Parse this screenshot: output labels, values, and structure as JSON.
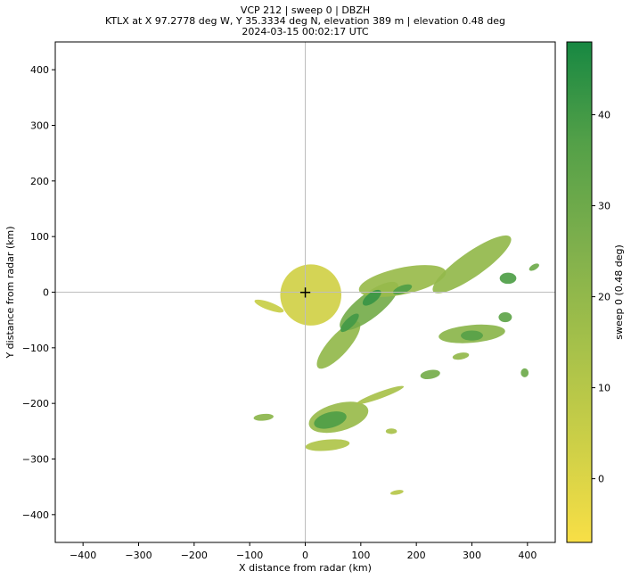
{
  "chart_data": {
    "type": "heatmap",
    "title_lines": [
      "VCP 212 | sweep 0 | DBZH",
      "KTLX at X 97.2778 deg W, Y 35.3334 deg N, elevation 389 m | elevation 0.48 deg",
      "2024-03-15 00:02:17 UTC"
    ],
    "xlabel": "X distance from radar (km)",
    "ylabel": "Y distance from radar (km)",
    "xlim": [
      -450,
      450
    ],
    "ylim": [
      -450,
      450
    ],
    "xticks": [
      -400,
      -300,
      -200,
      -100,
      0,
      100,
      200,
      300,
      400
    ],
    "yticks": [
      -400,
      -300,
      -200,
      -100,
      0,
      100,
      200,
      300,
      400
    ],
    "radar_marker": {
      "x": 0,
      "y": 0,
      "symbol": "+"
    },
    "crosshair_lines": true,
    "colorbar": {
      "label": "sweep 0 (0.48 deg)",
      "range": [
        -7,
        48
      ],
      "ticks": [
        0,
        10,
        20,
        30,
        40
      ],
      "colors": [
        "#f8df46",
        "#cccf47",
        "#a4c04a",
        "#7daf4c",
        "#53a048",
        "#178842"
      ]
    },
    "echo_regions": [
      {
        "name": "near-radar ground clutter",
        "cx": 10,
        "cy": -5,
        "rx": 55,
        "ry": 55,
        "rot": 0,
        "dbz": 3
      },
      {
        "name": "southwest clutter tail",
        "cx": -65,
        "cy": -25,
        "rx": 28,
        "ry": 7,
        "rot": -20,
        "dbz": 5
      },
      {
        "name": "main line southwest end",
        "cx": 60,
        "cy": -95,
        "rx": 55,
        "ry": 18,
        "rot": 48,
        "dbz": 20
      },
      {
        "name": "main line core",
        "cx": 115,
        "cy": -25,
        "rx": 65,
        "ry": 22,
        "rot": 38,
        "dbz": 28
      },
      {
        "name": "northeast stratiform",
        "cx": 175,
        "cy": 20,
        "rx": 80,
        "ry": 24,
        "rot": 12,
        "dbz": 18
      },
      {
        "name": "northeast band",
        "cx": 300,
        "cy": 50,
        "rx": 85,
        "ry": 22,
        "rot": 35,
        "dbz": 20
      },
      {
        "name": "main line cell A",
        "cx": 120,
        "cy": -10,
        "rx": 20,
        "ry": 9,
        "rot": 38,
        "dbz": 42
      },
      {
        "name": "main line cell B",
        "cx": 80,
        "cy": -55,
        "rx": 22,
        "ry": 8,
        "rot": 45,
        "dbz": 40
      },
      {
        "name": "main line cell C",
        "cx": 175,
        "cy": 5,
        "rx": 18,
        "ry": 7,
        "rot": 20,
        "dbz": 38
      },
      {
        "name": "east cells",
        "cx": 300,
        "cy": -75,
        "rx": 60,
        "ry": 16,
        "rot": 5,
        "dbz": 22
      },
      {
        "name": "east cell core",
        "cx": 300,
        "cy": -78,
        "rx": 20,
        "ry": 9,
        "rot": 0,
        "dbz": 36
      },
      {
        "name": "east cell pair",
        "cx": 360,
        "cy": -45,
        "rx": 12,
        "ry": 9,
        "rot": 0,
        "dbz": 34
      },
      {
        "name": "far east cell",
        "cx": 365,
        "cy": 25,
        "rx": 15,
        "ry": 10,
        "rot": 0,
        "dbz": 38
      },
      {
        "name": "far east fragment",
        "cx": 412,
        "cy": 45,
        "rx": 10,
        "ry": 5,
        "rot": 30,
        "dbz": 30
      },
      {
        "name": "south complex",
        "cx": 60,
        "cy": -225,
        "rx": 55,
        "ry": 25,
        "rot": 15,
        "dbz": 18
      },
      {
        "name": "south complex core",
        "cx": 45,
        "cy": -230,
        "rx": 30,
        "ry": 14,
        "rot": 15,
        "dbz": 38
      },
      {
        "name": "south tail",
        "cx": 40,
        "cy": -275,
        "rx": 40,
        "ry": 10,
        "rot": 5,
        "dbz": 12
      },
      {
        "name": "south arm",
        "cx": 135,
        "cy": -185,
        "rx": 45,
        "ry": 6,
        "rot": 20,
        "dbz": 14
      },
      {
        "name": "southeast cell",
        "cx": 225,
        "cy": -148,
        "rx": 18,
        "ry": 8,
        "rot": 10,
        "dbz": 28
      },
      {
        "name": "west cell",
        "cx": -75,
        "cy": -225,
        "rx": 18,
        "ry": 6,
        "rot": 5,
        "dbz": 22
      },
      {
        "name": "far southeast cell",
        "cx": 395,
        "cy": -145,
        "rx": 7,
        "ry": 8,
        "rot": 0,
        "dbz": 30
      },
      {
        "name": "east-southeast fragment",
        "cx": 280,
        "cy": -115,
        "rx": 15,
        "ry": 6,
        "rot": 10,
        "dbz": 20
      },
      {
        "name": "south-southeast fragment",
        "cx": 155,
        "cy": -250,
        "rx": 10,
        "ry": 5,
        "rot": 0,
        "dbz": 14
      },
      {
        "name": "far south speck",
        "cx": 165,
        "cy": -360,
        "rx": 12,
        "ry": 4,
        "rot": 10,
        "dbz": 10
      }
    ]
  }
}
